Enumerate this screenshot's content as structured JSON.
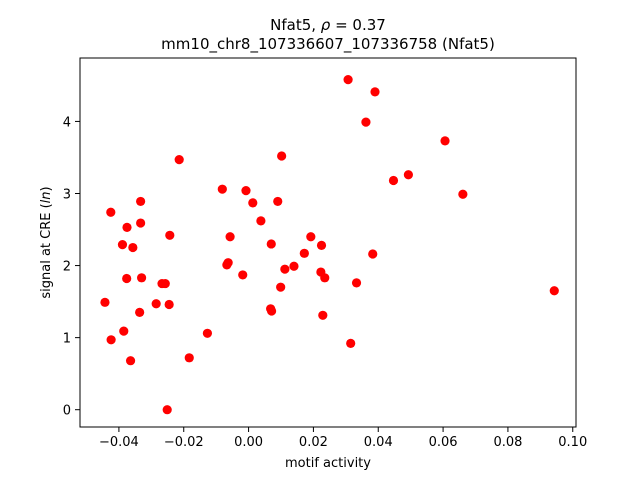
{
  "chart_data": {
    "type": "scatter",
    "title_line1_prefix": "Nfat5, ",
    "title_line1_rho": "ρ",
    "title_line1_suffix": " = 0.37",
    "title_line2": "mm10_chr8_107336607_107336758 (Nfat5)",
    "xlabel": "motif activity",
    "ylabel_prefix": "signal at CRE (",
    "ylabel_italic": "ln",
    "ylabel_suffix": ")",
    "xlim": [
      -0.052,
      0.101
    ],
    "ylim": [
      -0.24,
      4.88
    ],
    "xticks": [
      -0.04,
      -0.02,
      0.0,
      0.02,
      0.04,
      0.06,
      0.08,
      0.1
    ],
    "xtick_labels": [
      "−0.04",
      "−0.02",
      "0.00",
      "0.02",
      "0.04",
      "0.06",
      "0.08",
      "0.10"
    ],
    "yticks": [
      0,
      1,
      2,
      3,
      4
    ],
    "ytick_labels": [
      "0",
      "1",
      "2",
      "3",
      "4"
    ],
    "grid": false,
    "marker_color": "#ff0000",
    "points": [
      {
        "x": -0.0443,
        "y": 1.49
      },
      {
        "x": -0.0425,
        "y": 2.74
      },
      {
        "x": -0.0424,
        "y": 0.97
      },
      {
        "x": -0.0389,
        "y": 2.29
      },
      {
        "x": -0.0385,
        "y": 1.09
      },
      {
        "x": -0.0376,
        "y": 1.82
      },
      {
        "x": -0.0375,
        "y": 2.53
      },
      {
        "x": -0.0364,
        "y": 0.68
      },
      {
        "x": -0.0357,
        "y": 2.25
      },
      {
        "x": -0.0336,
        "y": 1.35
      },
      {
        "x": -0.0333,
        "y": 2.89
      },
      {
        "x": -0.0333,
        "y": 2.59
      },
      {
        "x": -0.033,
        "y": 1.83
      },
      {
        "x": -0.0285,
        "y": 1.47
      },
      {
        "x": -0.0267,
        "y": 1.75
      },
      {
        "x": -0.0257,
        "y": 1.75
      },
      {
        "x": -0.0251,
        "y": 0.0
      },
      {
        "x": -0.0245,
        "y": 1.46
      },
      {
        "x": -0.0243,
        "y": 2.42
      },
      {
        "x": -0.0214,
        "y": 3.47
      },
      {
        "x": -0.0183,
        "y": 0.72
      },
      {
        "x": -0.0127,
        "y": 1.06
      },
      {
        "x": -0.0081,
        "y": 3.06
      },
      {
        "x": -0.0067,
        "y": 2.01
      },
      {
        "x": -0.0063,
        "y": 2.04
      },
      {
        "x": -0.0057,
        "y": 2.4
      },
      {
        "x": -0.0018,
        "y": 1.87
      },
      {
        "x": -0.0008,
        "y": 3.04
      },
      {
        "x": 0.0013,
        "y": 2.87
      },
      {
        "x": 0.0038,
        "y": 2.62
      },
      {
        "x": 0.0068,
        "y": 1.4
      },
      {
        "x": 0.007,
        "y": 2.3
      },
      {
        "x": 0.0071,
        "y": 1.37
      },
      {
        "x": 0.009,
        "y": 2.89
      },
      {
        "x": 0.0099,
        "y": 1.7
      },
      {
        "x": 0.0102,
        "y": 3.52
      },
      {
        "x": 0.0112,
        "y": 1.95
      },
      {
        "x": 0.014,
        "y": 1.99
      },
      {
        "x": 0.0172,
        "y": 2.17
      },
      {
        "x": 0.0192,
        "y": 2.4
      },
      {
        "x": 0.0223,
        "y": 1.91
      },
      {
        "x": 0.0225,
        "y": 2.28
      },
      {
        "x": 0.0229,
        "y": 1.31
      },
      {
        "x": 0.0235,
        "y": 1.83
      },
      {
        "x": 0.0307,
        "y": 4.58
      },
      {
        "x": 0.0315,
        "y": 0.92
      },
      {
        "x": 0.0333,
        "y": 1.76
      },
      {
        "x": 0.0362,
        "y": 3.99
      },
      {
        "x": 0.0383,
        "y": 2.16
      },
      {
        "x": 0.039,
        "y": 4.41
      },
      {
        "x": 0.0447,
        "y": 3.18
      },
      {
        "x": 0.0493,
        "y": 3.26
      },
      {
        "x": 0.0606,
        "y": 3.73
      },
      {
        "x": 0.0661,
        "y": 2.99
      },
      {
        "x": 0.0943,
        "y": 1.65
      }
    ]
  }
}
